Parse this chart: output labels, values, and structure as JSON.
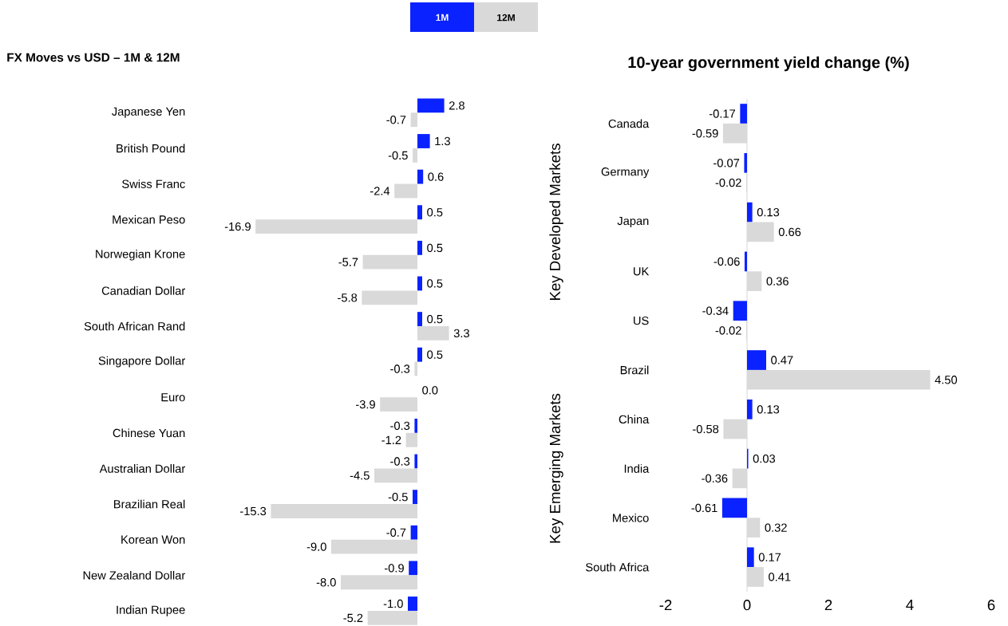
{
  "chart_data": [
    {
      "type": "bar",
      "orientation": "horizontal",
      "title": "FX Moves vs USD – 1M & 12M",
      "legend": "top",
      "tick_labels": "y",
      "categories": [
        "Japanese Yen",
        "British Pound",
        "Swiss Franc",
        "Mexican Peso",
        "Norwegian Krone",
        "Canadian Dollar",
        "South African Rand",
        "Singapore Dollar",
        "Euro",
        "Chinese Yuan",
        "Australian Dollar",
        "Brazilian Real",
        "Korean Won",
        "New Zealand Dollar",
        "Indian Rupee"
      ],
      "series": [
        {
          "name": "1M",
          "color": "#0a22ff",
          "values": [
            2.8,
            1.3,
            0.6,
            0.5,
            0.5,
            0.5,
            0.5,
            0.5,
            0.0,
            -0.3,
            -0.3,
            -0.5,
            -0.7,
            -0.9,
            -1.0
          ],
          "value_labels": [
            "2.8",
            "1.3",
            "0.6",
            "0.5",
            "0.5",
            "0.5",
            "0.5",
            "0.5",
            "0.0",
            "-0.3",
            "-0.3",
            "-0.5",
            "-0.7",
            "-0.9",
            "-1.0"
          ]
        },
        {
          "name": "12M",
          "color": "#d9d9d9",
          "values": [
            -0.7,
            -0.5,
            -2.4,
            -16.9,
            -5.7,
            -5.8,
            3.3,
            -0.3,
            -3.9,
            -1.2,
            -4.5,
            -15.3,
            -9.0,
            -8.0,
            -5.2
          ],
          "value_labels": [
            "-0.7",
            "-0.5",
            "-2.4",
            "-16.9",
            "-5.7",
            "-5.8",
            "3.3",
            "-0.3",
            "-3.9",
            "-1.2",
            "-4.5",
            "-15.3",
            "-9.0",
            "-8.0",
            "-5.2"
          ]
        }
      ]
    },
    {
      "type": "bar",
      "orientation": "horizontal",
      "title": "10-year government yield change (%)",
      "xlim": [
        -2,
        6
      ],
      "xticks": [
        -2,
        0,
        2,
        4,
        6
      ],
      "annotations": [
        "Key Developed Markets",
        "Key Emerging Markets"
      ],
      "categories": [
        "Canada",
        "Germany",
        "Japan",
        "UK",
        "US",
        "Brazil",
        "China",
        "India",
        "Mexico",
        "South Africa"
      ],
      "series": [
        {
          "color": "#0a22ff",
          "values": [
            -0.17,
            -0.07,
            0.13,
            -0.06,
            -0.34,
            0.47,
            0.13,
            0.03,
            -0.61,
            0.17
          ],
          "value_labels": [
            "-0.17",
            "-0.07",
            "0.13",
            "-0.06",
            "-0.34",
            "0.47",
            "0.13",
            "0.03",
            "-0.61",
            "0.17"
          ]
        },
        {
          "color": "#d9d9d9",
          "values": [
            -0.59,
            -0.02,
            0.66,
            0.36,
            -0.02,
            4.5,
            -0.58,
            -0.36,
            0.32,
            0.41
          ],
          "value_labels": [
            "-0.59",
            "-0.02",
            "0.66",
            "0.36",
            "-0.02",
            "4.50",
            "-0.58",
            "-0.36",
            "0.32",
            "0.41"
          ]
        }
      ]
    }
  ]
}
